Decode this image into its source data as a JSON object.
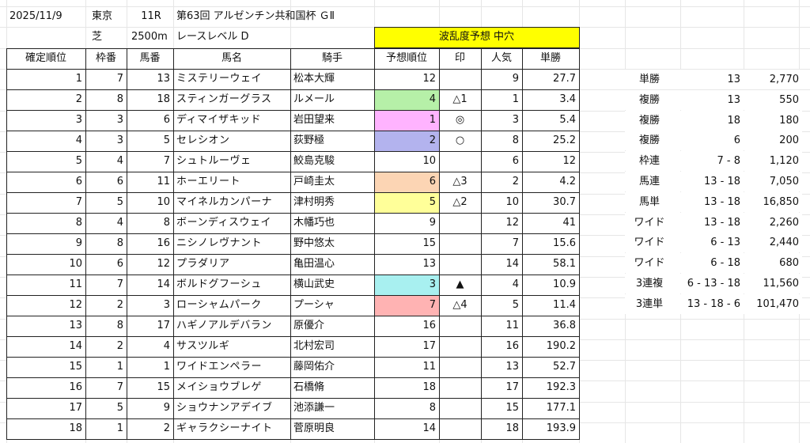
{
  "header": {
    "date": "2025/11/9",
    "venue": "東京",
    "race_no": "11R",
    "race_name": "第63回 アルゼンチン共和国杯 ＧⅡ",
    "surface": "芝",
    "distance": "2500m",
    "race_level": "レースレベル D",
    "forecast": "波乱度予想 中穴"
  },
  "columns": [
    "確定順位",
    "枠番",
    "馬番",
    "馬名",
    "騎手",
    "予想順位",
    "印",
    "人気",
    "単勝"
  ],
  "rows": [
    {
      "rank": "1",
      "waku": "7",
      "uma": "13",
      "name": "ミステリーウェイ",
      "jockey": "松本大輝",
      "pred": "12",
      "mark": "",
      "pop": "9",
      "odds": "27.7",
      "hl": ""
    },
    {
      "rank": "2",
      "waku": "8",
      "uma": "18",
      "name": "スティンガーグラス",
      "jockey": "ルメール",
      "pred": "4",
      "mark": "△1",
      "pop": "1",
      "odds": "3.4",
      "hl": "#b6f0a8"
    },
    {
      "rank": "3",
      "waku": "3",
      "uma": "6",
      "name": "ディマイザキッド",
      "jockey": "岩田望来",
      "pred": "1",
      "mark": "◎",
      "pop": "3",
      "odds": "5.4",
      "hl": "#ffb3ff"
    },
    {
      "rank": "4",
      "waku": "3",
      "uma": "5",
      "name": "セレシオン",
      "jockey": "荻野極",
      "pred": "2",
      "mark": "○",
      "pop": "8",
      "odds": "25.2",
      "hl": "#b3b3ee"
    },
    {
      "rank": "5",
      "waku": "4",
      "uma": "7",
      "name": "シュトルーヴェ",
      "jockey": "鮫島克駿",
      "pred": "10",
      "mark": "",
      "pop": "6",
      "odds": "12",
      "hl": ""
    },
    {
      "rank": "6",
      "waku": "6",
      "uma": "11",
      "name": "ホーエリート",
      "jockey": "戸崎圭太",
      "pred": "6",
      "mark": "△3",
      "pop": "2",
      "odds": "4.2",
      "hl": "#fcd5b4"
    },
    {
      "rank": "7",
      "waku": "5",
      "uma": "10",
      "name": "マイネルカンパーナ",
      "jockey": "津村明秀",
      "pred": "5",
      "mark": "△2",
      "pop": "10",
      "odds": "30.7",
      "hl": "#ffff99"
    },
    {
      "rank": "8",
      "waku": "4",
      "uma": "8",
      "name": "ボーンディスウェイ",
      "jockey": "木幡巧也",
      "pred": "9",
      "mark": "",
      "pop": "12",
      "odds": "41",
      "hl": ""
    },
    {
      "rank": "9",
      "waku": "8",
      "uma": "16",
      "name": "ニシノレヴナント",
      "jockey": "野中悠太",
      "pred": "15",
      "mark": "",
      "pop": "7",
      "odds": "15.6",
      "hl": ""
    },
    {
      "rank": "10",
      "waku": "6",
      "uma": "12",
      "name": "プラダリア",
      "jockey": "亀田温心",
      "pred": "13",
      "mark": "",
      "pop": "14",
      "odds": "58.1",
      "hl": ""
    },
    {
      "rank": "11",
      "waku": "7",
      "uma": "14",
      "name": "ボルドグフーシュ",
      "jockey": "横山武史",
      "pred": "3",
      "mark": "▲",
      "pop": "4",
      "odds": "10.9",
      "hl": "#a8f0f0"
    },
    {
      "rank": "12",
      "waku": "2",
      "uma": "3",
      "name": "ローシャムパーク",
      "jockey": "プーシャ",
      "pred": "7",
      "mark": "△4",
      "pop": "5",
      "odds": "11.4",
      "hl": "#ffb3b3"
    },
    {
      "rank": "13",
      "waku": "8",
      "uma": "17",
      "name": "ハギノアルデバラン",
      "jockey": "原優介",
      "pred": "16",
      "mark": "",
      "pop": "11",
      "odds": "36.8",
      "hl": ""
    },
    {
      "rank": "14",
      "waku": "2",
      "uma": "4",
      "name": "サスツルギ",
      "jockey": "北村宏司",
      "pred": "17",
      "mark": "",
      "pop": "16",
      "odds": "190.2",
      "hl": ""
    },
    {
      "rank": "15",
      "waku": "1",
      "uma": "1",
      "name": "ワイドエンペラー",
      "jockey": "藤岡佑介",
      "pred": "11",
      "mark": "",
      "pop": "13",
      "odds": "52.7",
      "hl": ""
    },
    {
      "rank": "16",
      "waku": "7",
      "uma": "15",
      "name": "メイショウブレゲ",
      "jockey": "石橋脩",
      "pred": "18",
      "mark": "",
      "pop": "17",
      "odds": "192.3",
      "hl": ""
    },
    {
      "rank": "17",
      "waku": "5",
      "uma": "9",
      "name": "ショウナンアデイブ",
      "jockey": "池添謙一",
      "pred": "8",
      "mark": "",
      "pop": "15",
      "odds": "177.1",
      "hl": ""
    },
    {
      "rank": "18",
      "waku": "1",
      "uma": "2",
      "name": "ギャラクシーナイト",
      "jockey": "菅原明良",
      "pred": "14",
      "mark": "",
      "pop": "18",
      "odds": "193.9",
      "hl": ""
    }
  ],
  "payouts": [
    {
      "type": "単勝",
      "combo": "13",
      "amount": "2,770"
    },
    {
      "type": "複勝",
      "combo": "13",
      "amount": "550"
    },
    {
      "type": "複勝",
      "combo": "18",
      "amount": "180"
    },
    {
      "type": "複勝",
      "combo": "6",
      "amount": "200"
    },
    {
      "type": "枠連",
      "combo": "7 - 8",
      "amount": "1,120"
    },
    {
      "type": "馬連",
      "combo": "13 - 18",
      "amount": "7,050"
    },
    {
      "type": "馬単",
      "combo": "13 - 18",
      "amount": "16,850"
    },
    {
      "type": "ワイド",
      "combo": "13 - 18",
      "amount": "2,260"
    },
    {
      "type": "ワイド",
      "combo": "6 - 13",
      "amount": "2,440"
    },
    {
      "type": "ワイド",
      "combo": "6 - 18",
      "amount": "680"
    },
    {
      "type": "3連複",
      "combo": "6 - 13 - 18",
      "amount": "11,560"
    },
    {
      "type": "3連単",
      "combo": "13 - 18 - 6",
      "amount": "101,470"
    }
  ]
}
